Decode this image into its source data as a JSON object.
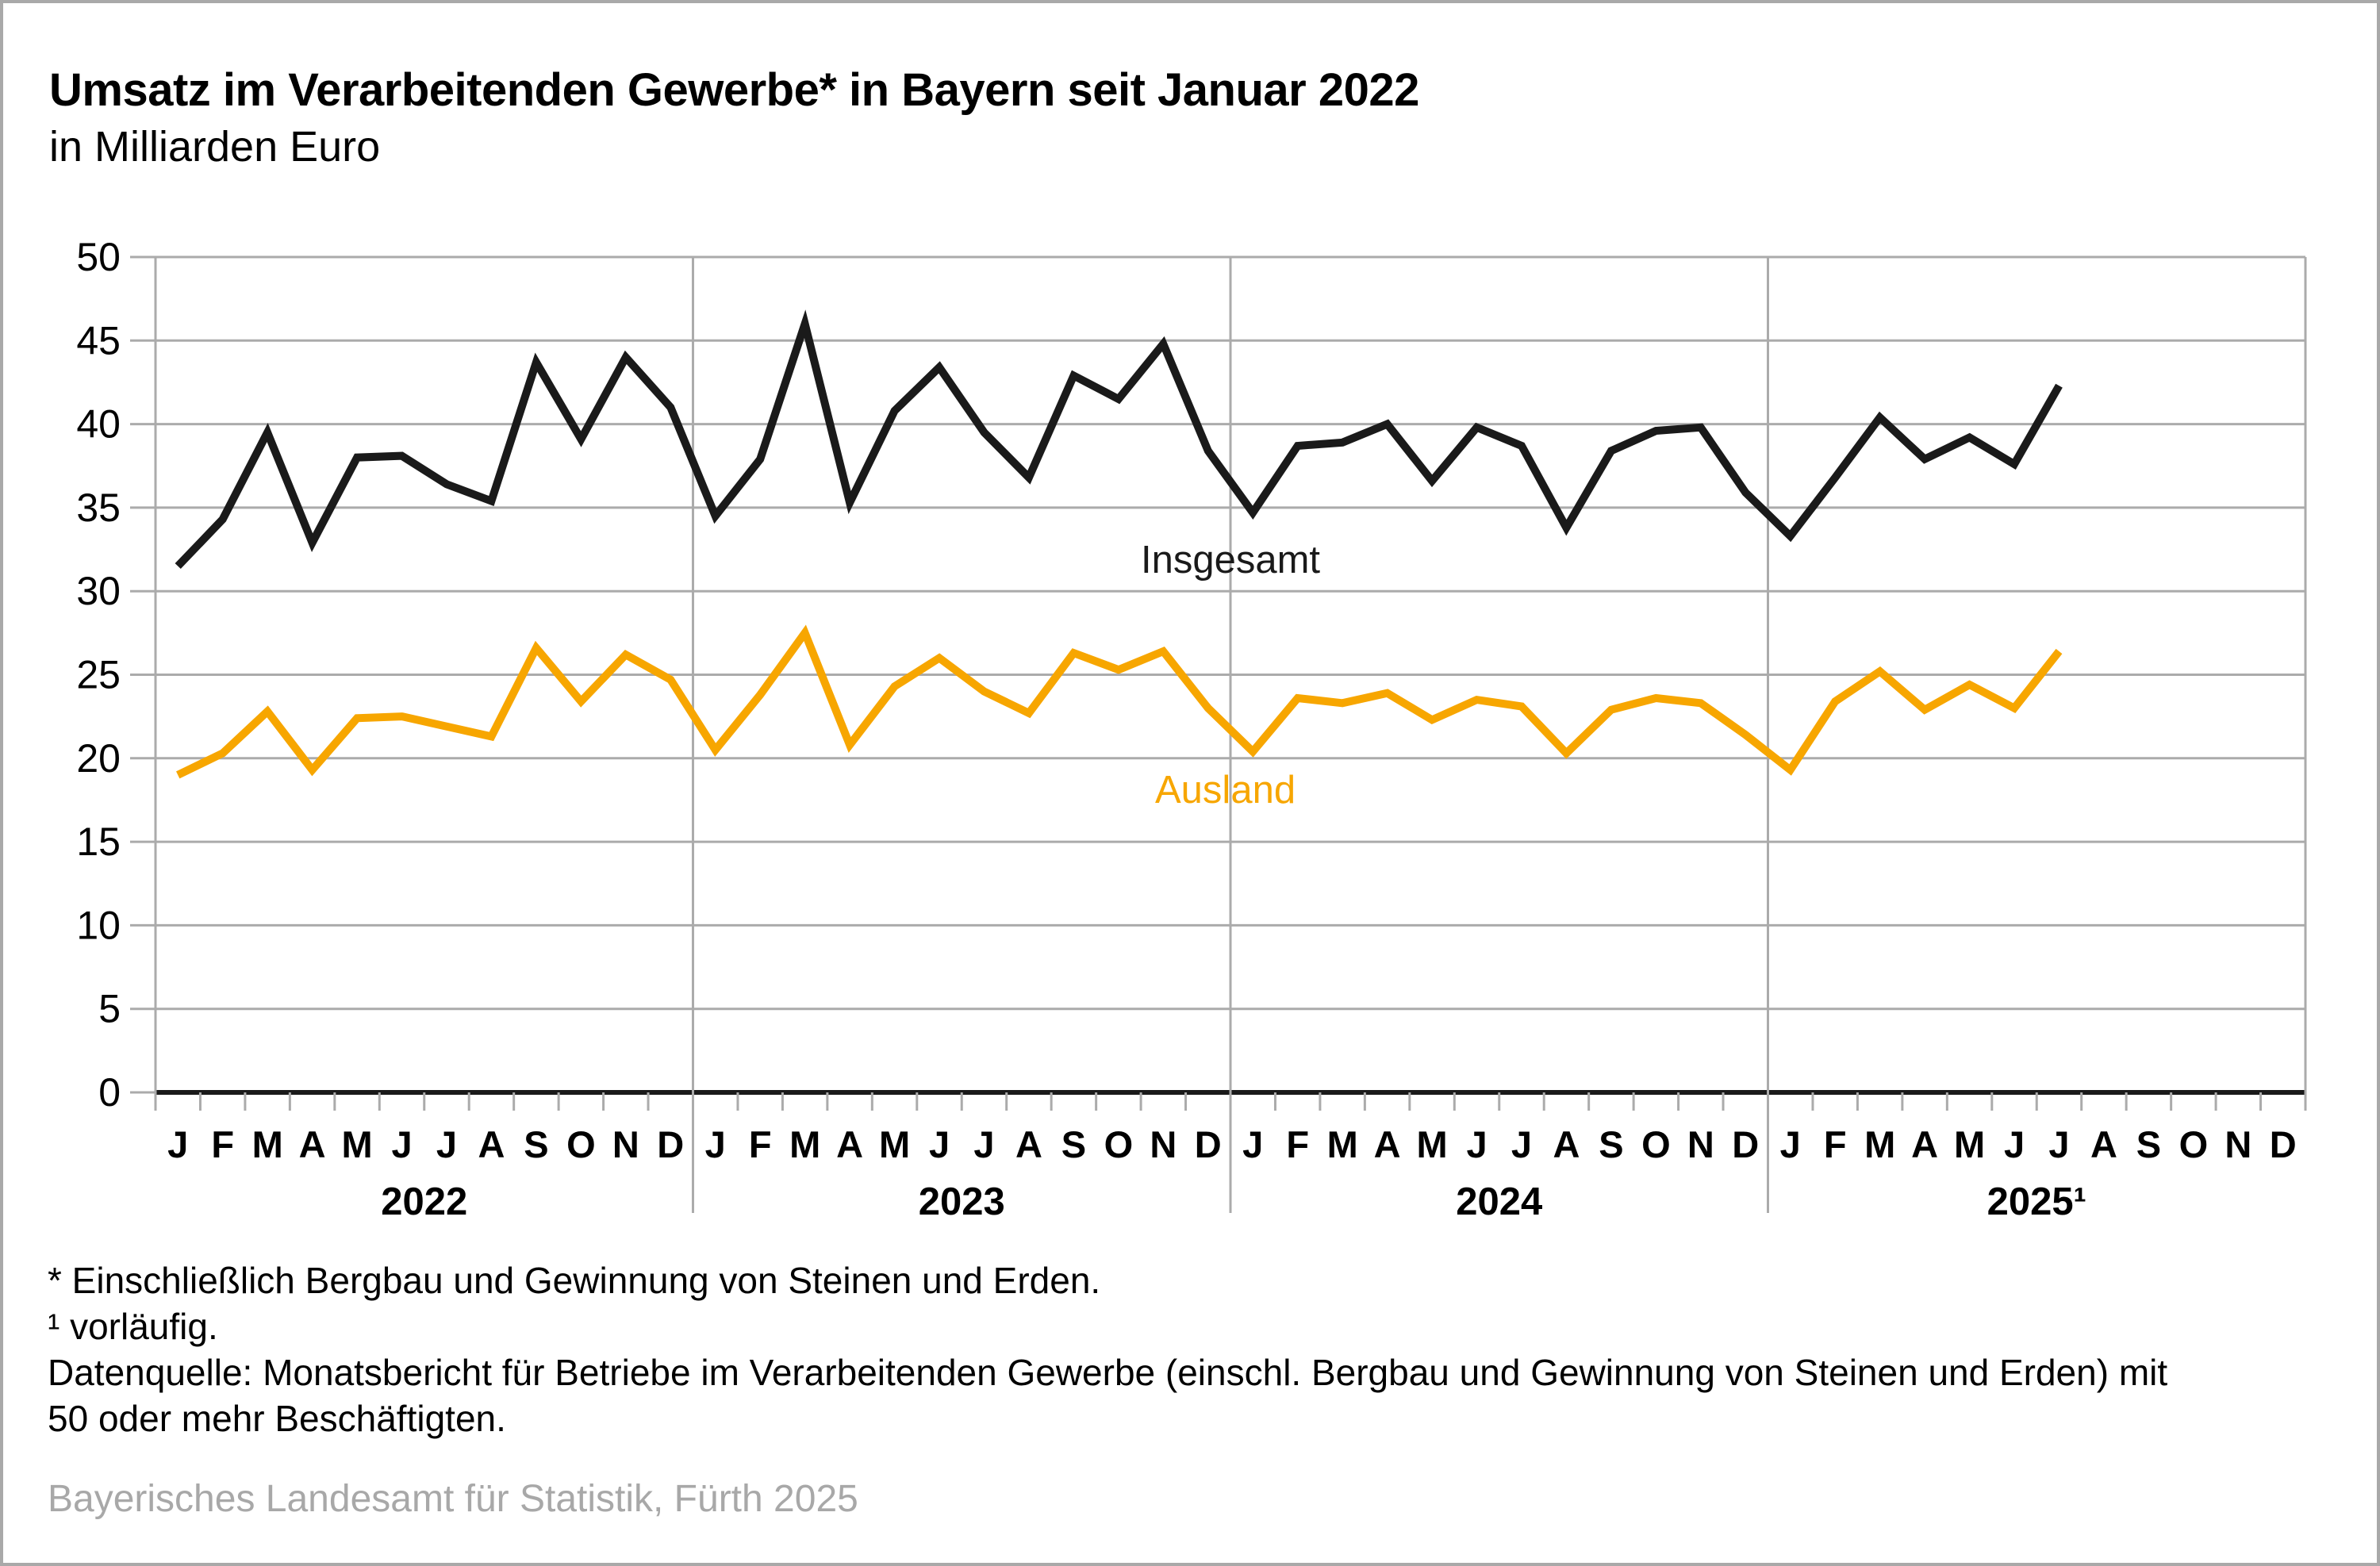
{
  "header": {
    "title": "Umsatz im Verarbeitenden Gewerbe* in Bayern seit Januar 2022",
    "subtitle": "in Milliarden Euro"
  },
  "chart_data": {
    "type": "line",
    "title": "Umsatz im Verarbeitenden Gewerbe* in Bayern seit Januar 2022",
    "ylabel": "in Milliarden Euro",
    "xlabel": "",
    "ylim": [
      0,
      50
    ],
    "yticks": [
      0,
      5,
      10,
      15,
      20,
      25,
      30,
      35,
      40,
      45,
      50
    ],
    "grid": true,
    "legend_position": "inline-labels",
    "month_letters": [
      "J",
      "F",
      "M",
      "A",
      "M",
      "J",
      "J",
      "A",
      "S",
      "O",
      "N",
      "D"
    ],
    "years": [
      "2022",
      "2023",
      "2024",
      "2025¹"
    ],
    "months_per_year": 12,
    "total_slots": 48,
    "last_data_point": "Juli 2025",
    "series": [
      {
        "name": "Insgesamt",
        "color": "#1a1a1a",
        "values": [
          31.5,
          34.3,
          39.5,
          32.9,
          38.0,
          38.1,
          36.4,
          35.4,
          43.7,
          39.1,
          44.0,
          41.0,
          34.5,
          37.9,
          46.0,
          35.3,
          40.8,
          43.4,
          39.5,
          36.8,
          42.9,
          41.5,
          44.8,
          38.4,
          34.7,
          38.7,
          38.9,
          40.0,
          36.6,
          39.8,
          38.7,
          33.8,
          38.4,
          39.6,
          39.8,
          35.9,
          33.3,
          36.8,
          40.4,
          37.9,
          39.2,
          37.6,
          42.3
        ]
      },
      {
        "name": "Ausland",
        "color": "#f7a600",
        "values": [
          19.0,
          20.3,
          22.8,
          19.3,
          22.4,
          22.5,
          21.9,
          21.3,
          26.6,
          23.4,
          26.2,
          24.7,
          20.5,
          23.8,
          27.5,
          20.8,
          24.3,
          26.0,
          24.0,
          22.7,
          26.3,
          25.3,
          26.4,
          23.0,
          20.4,
          23.6,
          23.3,
          23.9,
          22.3,
          23.5,
          23.1,
          20.3,
          22.9,
          23.6,
          23.3,
          21.4,
          19.3,
          23.4,
          25.2,
          22.9,
          24.4,
          23.0,
          26.4
        ]
      }
    ]
  },
  "footnotes": [
    "* Einschließlich Bergbau und Gewinnung von Steinen und Erden.",
    "¹  vorläufig.",
    "Datenquelle: Monatsbericht für Betriebe im Verarbeitenden Gewerbe (einschl. Bergbau und Gewinnung von Steinen und Erden) mit 50 oder mehr Beschäftigten."
  ],
  "source": "Bayerisches Landesamt für Statistik, Fürth 2025"
}
